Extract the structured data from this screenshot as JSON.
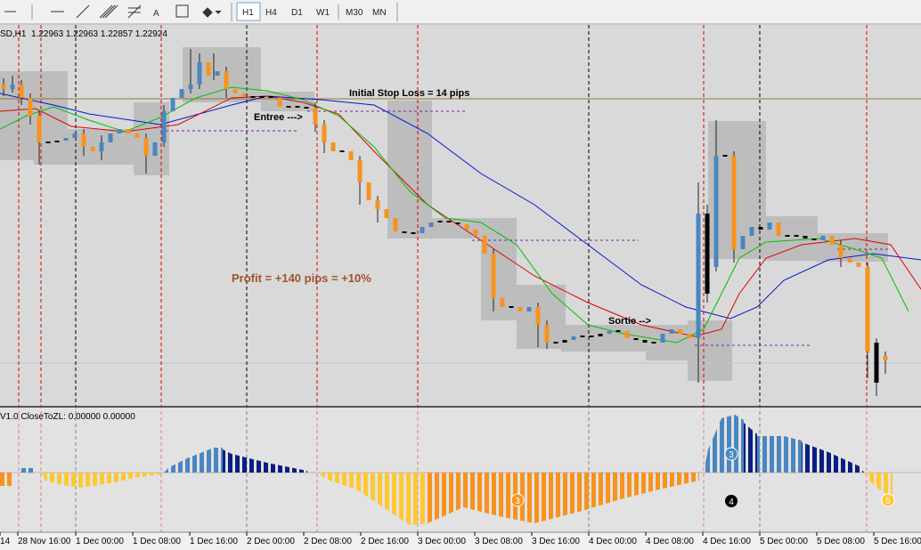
{
  "toolbar": {
    "tool_text": "A",
    "timeframes": [
      "H1",
      "H4",
      "D1",
      "W1",
      "M30",
      "MN"
    ]
  },
  "chart": {
    "header": "SD,H1  1.22963 1.22963 1.22857 1.22924",
    "annotations": {
      "stop_loss": "Initial Stop Loss = 14 pips",
      "entry": "Entree --->",
      "profit": "Profit = +140 pips = +10%",
      "exit": "Sortie -->"
    }
  },
  "indicator": {
    "label": "V1.0 CloseToZL: 0.00000 0.00000",
    "markers": [
      "3",
      "3",
      "4",
      "5"
    ]
  },
  "time_axis": [
    "14",
    "28 Nov 16:00",
    "1 Dec 00:00",
    "1 Dec 08:00",
    "1 Dec 16:00",
    "2 Dec 00:00",
    "2 Dec 08:00",
    "2 Dec 16:00",
    "3 Dec 00:00",
    "3 Dec 08:00",
    "3 Dec 16:00",
    "4 Dec 00:00",
    "4 Dec 08:00",
    "4 Dec 16:00",
    "5 Dec 00:00",
    "5 Dec 08:00",
    "5 Dec 16:00"
  ]
}
